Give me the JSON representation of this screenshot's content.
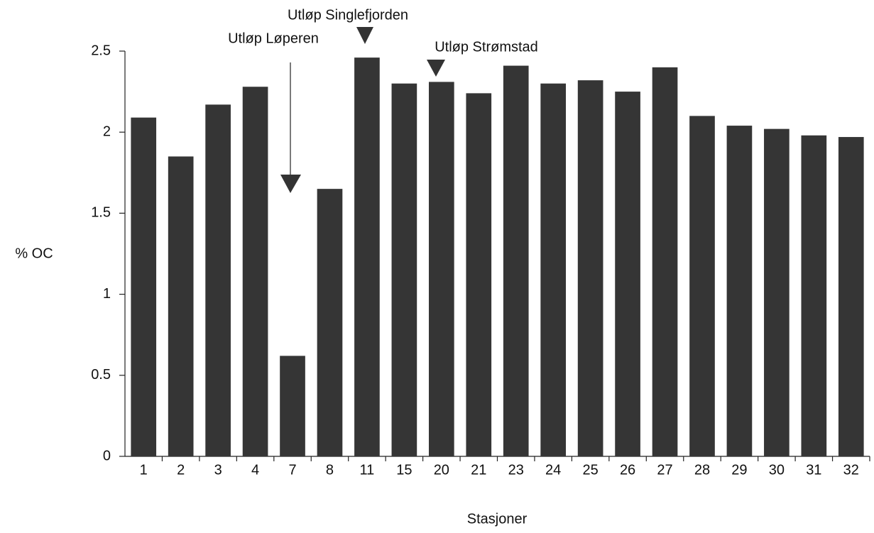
{
  "chart_data": {
    "type": "bar",
    "y_label": "% OC",
    "x_label": "Stasjoner",
    "categories": [
      "1",
      "2",
      "3",
      "4",
      "7",
      "8",
      "11",
      "15",
      "20",
      "21",
      "23",
      "24",
      "25",
      "26",
      "27",
      "28",
      "29",
      "30",
      "31",
      "32"
    ],
    "values": [
      2.09,
      1.85,
      2.17,
      2.28,
      0.62,
      1.65,
      2.46,
      2.3,
      2.31,
      2.24,
      2.41,
      2.3,
      2.32,
      2.25,
      2.4,
      2.1,
      2.04,
      2.02,
      1.98,
      1.97
    ],
    "color": "#353535",
    "ylim": [
      0,
      2.5
    ],
    "yticks": [
      0,
      0.5,
      1,
      1.5,
      2,
      2.5
    ],
    "grid": false,
    "annotations": [
      "Utløp Singlefjorden",
      "Utløp Løperen",
      "Utløp Strømstad"
    ]
  }
}
